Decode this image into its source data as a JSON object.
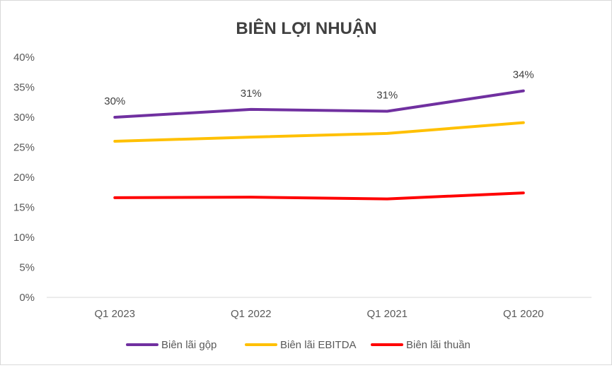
{
  "chart_data": {
    "type": "line",
    "title": "BIÊN LỢI NHUẬN",
    "categories": [
      "Q1 2023",
      "Q1 2022",
      "Q1 2021",
      "Q1 2020"
    ],
    "ylim": [
      0,
      40
    ],
    "yticks": [
      "0%",
      "5%",
      "10%",
      "15%",
      "20%",
      "25%",
      "30%",
      "35%",
      "40%"
    ],
    "grid": false,
    "legend_position": "bottom",
    "series": [
      {
        "name": "Biên lãi gộp",
        "color": "#7030a0",
        "values": [
          30.0,
          31.3,
          31.0,
          34.4
        ],
        "data_labels": [
          "30%",
          "31%",
          "31%",
          "34%"
        ]
      },
      {
        "name": "Biên lãi EBITDA",
        "color": "#ffc000",
        "values": [
          26.0,
          26.7,
          27.3,
          29.1
        ]
      },
      {
        "name": "Biên lãi thuần",
        "color": "#ff0000",
        "values": [
          16.6,
          16.7,
          16.4,
          17.4
        ]
      }
    ]
  }
}
